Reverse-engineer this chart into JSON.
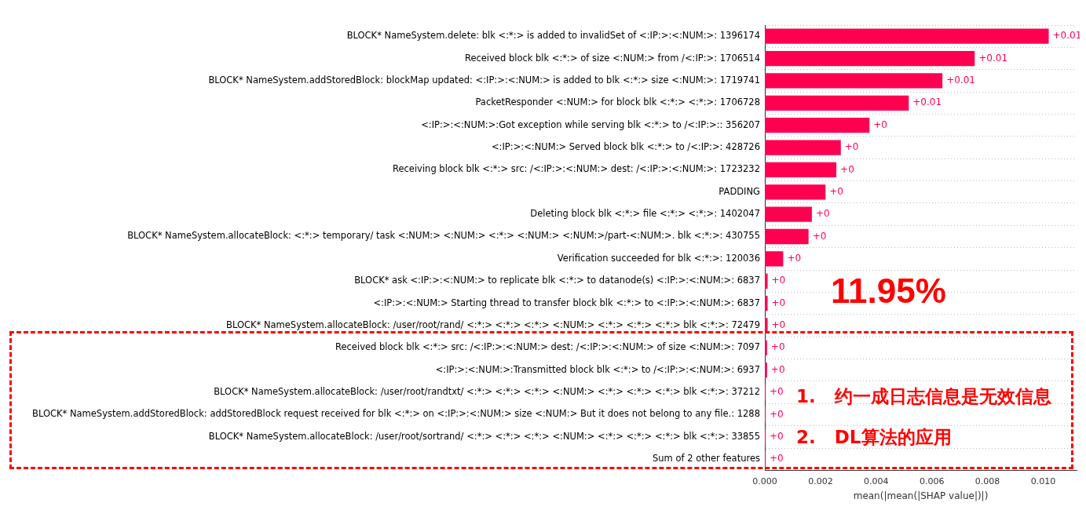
{
  "chart_data": {
    "type": "bar",
    "orientation": "horizontal",
    "categories": [
      "BLOCK* NameSystem.delete: blk <:*:> is added to invalidSet of <:IP:>:<:NUM:>: 1396174",
      "Received block blk <:*:> of size <:NUM:> from /<:IP:>: 1706514",
      "BLOCK* NameSystem.addStoredBlock: blockMap updated: <:IP:>:<:NUM:> is added to blk <:*:> size <:NUM:>: 1719741",
      "PacketResponder <:NUM:> for block blk <:*:> <:*:>: 1706728",
      "<:IP:>:<:NUM:>:Got exception while serving blk <:*:> to /<:IP:>:: 356207",
      "<:IP:>:<:NUM:> Served block blk <:*:> to /<:IP:>: 428726",
      "Receiving block blk <:*:> src: /<:IP:>:<:NUM:> dest: /<:IP:>:<:NUM:>: 1723232",
      "PADDING",
      "Deleting block blk <:*:> file <:*:> <:*:>: 1402047",
      "BLOCK* NameSystem.allocateBlock: <:*:> temporary/ task <:NUM:> <:NUM:> <:*:> <:NUM:> <:NUM:>/part-<:NUM:>. blk <:*:>: 430755",
      "Verification succeeded for blk <:*:>: 120036",
      "BLOCK* ask <:IP:>:<:NUM:> to replicate blk <:*:> to datanode(s) <:IP:>:<:NUM:>: 6837",
      "<:IP:>:<:NUM:> Starting thread to transfer block blk <:*:> to <:IP:>:<:NUM:>: 6837",
      "BLOCK* NameSystem.allocateBlock: /user/root/rand/ <:*:> <:*:> <:*:> <:NUM:> <:*:> <:*:> <:*:> blk <:*:>: 72479",
      "Received block blk <:*:> src: /<:IP:>:<:NUM:> dest: /<:IP:>:<:NUM:> of size <:NUM:>: 7097",
      "<:IP:>:<:NUM:>:Transmitted block blk <:*:> to /<:IP:>:<:NUM:>: 6937",
      "BLOCK* NameSystem.allocateBlock: /user/root/randtxt/ <:*:> <:*:> <:*:> <:NUM:> <:*:> <:*:> <:*:> blk <:*:>: 37212",
      "BLOCK* NameSystem.addStoredBlock: addStoredBlock request received for blk <:*:> on <:IP:>:<:NUM:> size <:NUM:> But it does not belong to any file.: 1288",
      "BLOCK* NameSystem.allocateBlock: /user/root/sortrand/ <:*:> <:*:> <:*:> <:NUM:> <:*:> <:*:> <:*:> blk <:*:>: 33855",
      "Sum of 2 other features"
    ],
    "values": [
      0.0102,
      0.00754,
      0.00638,
      0.00517,
      0.00376,
      0.00273,
      0.00257,
      0.00218,
      0.00169,
      0.00157,
      0.00066,
      0.0001,
      0.0001,
      0.0001,
      8e-05,
      8e-05,
      3e-05,
      3e-05,
      3e-05,
      3e-05
    ],
    "value_labels": [
      "+0.01",
      "+0.01",
      "+0.01",
      "+0.01",
      "+0",
      "+0",
      "+0",
      "+0",
      "+0",
      "+0",
      "+0",
      "+0",
      "+0",
      "+0",
      "+0",
      "+0",
      "+0",
      "+0",
      "+0",
      "+0"
    ],
    "color": "#ff0051",
    "xlim": [
      0,
      0.0112
    ],
    "xticks": [
      {
        "value": 0,
        "label": "0.000"
      },
      {
        "value": 0.002,
        "label": "0.002"
      },
      {
        "value": 0.004,
        "label": "0.004"
      },
      {
        "value": 0.006,
        "label": "0.006"
      },
      {
        "value": 0.008,
        "label": "0.008"
      },
      {
        "value": 0.01,
        "label": "0.010"
      }
    ],
    "xlabel": "mean(|mean(|SHAP value|)|)",
    "grid": "y",
    "annotations": [
      "11.95%",
      "1.   约一成日志信息是无效信息",
      "2.   DL算法的应用"
    ]
  }
}
